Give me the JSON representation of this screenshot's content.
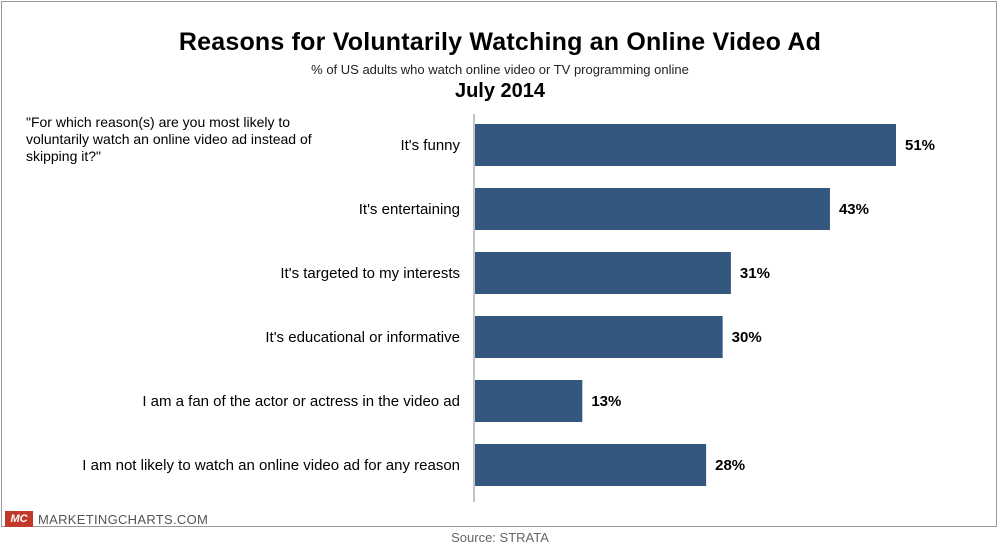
{
  "header": {
    "title": "Reasons for Voluntarily Watching an Online Video Ad",
    "subtitle": "% of US adults who watch online video or TV programming online",
    "date": "July 2014"
  },
  "question": "\"For which reason(s) are you most likely to voluntarily watch an online video ad instead of skipping it?\"",
  "footer": {
    "logo_text": "MC",
    "brand": "MARKETINGCHARTS.COM",
    "source": "Source: STRATA"
  },
  "colors": {
    "bar": "#34577f",
    "brand_red": "#c0392b"
  },
  "chart_data": {
    "type": "bar",
    "orientation": "horizontal",
    "categories": [
      "It's funny",
      "It's entertaining",
      "It's targeted to my interests",
      "It's educational or informative",
      "I am a fan of the actor or actress in the video ad",
      "I am not likely to watch an online video ad for any reason"
    ],
    "values": [
      51,
      43,
      31,
      30,
      13,
      28
    ],
    "value_labels": [
      "51%",
      "43%",
      "31%",
      "30%",
      "13%",
      "28%"
    ],
    "title": "Reasons for Voluntarily Watching an Online Video Ad",
    "xlim": [
      0,
      51
    ],
    "grid": false,
    "legend": "none"
  }
}
